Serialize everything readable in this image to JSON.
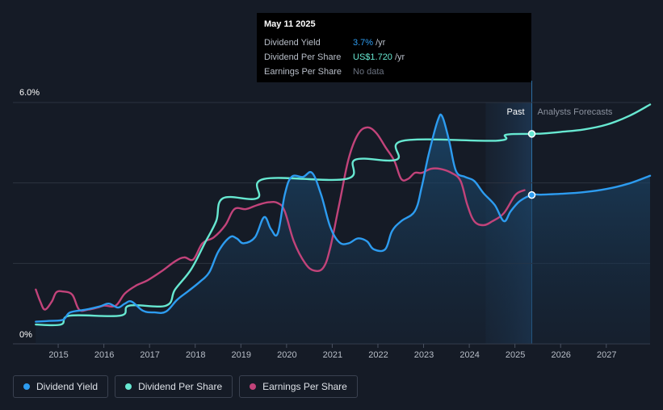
{
  "tooltip": {
    "date": "May 11 2025",
    "rows": [
      {
        "label": "Dividend Yield",
        "value": "3.7%",
        "unit": "/yr"
      },
      {
        "label": "Dividend Per Share",
        "value": "US$1.720",
        "unit": "/yr"
      },
      {
        "label": "Earnings Per Share",
        "value": "No data"
      }
    ]
  },
  "legend": {
    "items": [
      {
        "label": "Dividend Yield",
        "color": "#2d9cf0"
      },
      {
        "label": "Dividend Per Share",
        "color": "#67e8d1"
      },
      {
        "label": "Earnings Per Share",
        "color": "#c2437a"
      }
    ]
  },
  "chart_data": {
    "type": "line",
    "y_top_label": "6.0%",
    "y_bottom_label": "0%",
    "ylim": [
      0,
      6
    ],
    "xlim": [
      2014.0,
      2027.95
    ],
    "x_ticks": [
      2015,
      2016,
      2017,
      2018,
      2019,
      2020,
      2021,
      2022,
      2023,
      2024,
      2025,
      2026,
      2027
    ],
    "x_tick_labels": [
      "2015",
      "2016",
      "2017",
      "2018",
      "2019",
      "2020",
      "2021",
      "2022",
      "2023",
      "2024",
      "2025",
      "2026",
      "2027"
    ],
    "past_label": "Past",
    "forecast_label": "Analysts Forecasts",
    "forecast_start": 2025.36,
    "forecast_shade_start": 2024.35,
    "series": [
      {
        "name": "Dividend Yield",
        "color": "#2d9cf0",
        "values": [
          [
            2014.5,
            0.55
          ],
          [
            2014.8,
            0.57
          ],
          [
            2015.1,
            0.6
          ],
          [
            2015.25,
            0.78
          ],
          [
            2015.6,
            0.85
          ],
          [
            2015.9,
            0.93
          ],
          [
            2016.1,
            1.0
          ],
          [
            2016.3,
            0.9
          ],
          [
            2016.45,
            1.0
          ],
          [
            2016.6,
            1.05
          ],
          [
            2016.85,
            0.82
          ],
          [
            2017.1,
            0.78
          ],
          [
            2017.35,
            0.8
          ],
          [
            2017.6,
            1.1
          ],
          [
            2017.85,
            1.32
          ],
          [
            2018.1,
            1.55
          ],
          [
            2018.3,
            1.78
          ],
          [
            2018.5,
            2.3
          ],
          [
            2018.75,
            2.65
          ],
          [
            2018.9,
            2.62
          ],
          [
            2019.05,
            2.5
          ],
          [
            2019.3,
            2.65
          ],
          [
            2019.5,
            3.15
          ],
          [
            2019.65,
            2.85
          ],
          [
            2019.8,
            2.75
          ],
          [
            2019.95,
            3.7
          ],
          [
            2020.1,
            4.15
          ],
          [
            2020.35,
            4.15
          ],
          [
            2020.55,
            4.25
          ],
          [
            2020.75,
            3.7
          ],
          [
            2020.95,
            2.9
          ],
          [
            2021.15,
            2.52
          ],
          [
            2021.35,
            2.5
          ],
          [
            2021.55,
            2.62
          ],
          [
            2021.75,
            2.55
          ],
          [
            2021.9,
            2.35
          ],
          [
            2022.15,
            2.35
          ],
          [
            2022.3,
            2.8
          ],
          [
            2022.5,
            3.05
          ],
          [
            2022.8,
            3.3
          ],
          [
            2022.95,
            3.9
          ],
          [
            2023.1,
            4.7
          ],
          [
            2023.3,
            5.55
          ],
          [
            2023.4,
            5.65
          ],
          [
            2023.55,
            5.05
          ],
          [
            2023.7,
            4.3
          ],
          [
            2023.9,
            4.15
          ],
          [
            2024.1,
            4.05
          ],
          [
            2024.3,
            3.75
          ],
          [
            2024.55,
            3.45
          ],
          [
            2024.75,
            3.05
          ],
          [
            2024.9,
            3.3
          ],
          [
            2025.1,
            3.55
          ],
          [
            2025.36,
            3.7
          ],
          [
            2025.6,
            3.71
          ],
          [
            2026.0,
            3.73
          ],
          [
            2026.5,
            3.77
          ],
          [
            2027.0,
            3.85
          ],
          [
            2027.5,
            3.99
          ],
          [
            2027.95,
            4.18
          ]
        ]
      },
      {
        "name": "Dividend Per Share",
        "color": "#67e8d1",
        "values": [
          [
            2014.5,
            0.48
          ],
          [
            2015.05,
            0.48
          ],
          [
            2015.25,
            0.7
          ],
          [
            2016.35,
            0.7
          ],
          [
            2016.55,
            0.95
          ],
          [
            2017.35,
            0.95
          ],
          [
            2017.55,
            1.35
          ],
          [
            2017.9,
            1.85
          ],
          [
            2018.2,
            2.5
          ],
          [
            2018.45,
            3.05
          ],
          [
            2018.6,
            3.62
          ],
          [
            2019.35,
            3.62
          ],
          [
            2019.5,
            4.1
          ],
          [
            2021.3,
            4.1
          ],
          [
            2021.5,
            4.58
          ],
          [
            2022.4,
            4.58
          ],
          [
            2022.55,
            5.05
          ],
          [
            2024.6,
            5.05
          ],
          [
            2024.8,
            5.2
          ],
          [
            2025.36,
            5.22
          ],
          [
            2025.6,
            5.23
          ],
          [
            2026.0,
            5.27
          ],
          [
            2026.5,
            5.33
          ],
          [
            2027.0,
            5.45
          ],
          [
            2027.5,
            5.67
          ],
          [
            2027.95,
            5.95
          ]
        ]
      },
      {
        "name": "Earnings Per Share",
        "color": "#c2437a",
        "values": [
          [
            2014.5,
            1.35
          ],
          [
            2014.6,
            1.05
          ],
          [
            2014.7,
            0.85
          ],
          [
            2014.85,
            1.05
          ],
          [
            2014.95,
            1.28
          ],
          [
            2015.1,
            1.3
          ],
          [
            2015.3,
            1.22
          ],
          [
            2015.45,
            0.85
          ],
          [
            2015.65,
            0.85
          ],
          [
            2015.85,
            0.9
          ],
          [
            2016.0,
            0.95
          ],
          [
            2016.25,
            0.95
          ],
          [
            2016.45,
            1.25
          ],
          [
            2016.7,
            1.45
          ],
          [
            2016.95,
            1.58
          ],
          [
            2017.25,
            1.8
          ],
          [
            2017.55,
            2.05
          ],
          [
            2017.75,
            2.15
          ],
          [
            2017.95,
            2.1
          ],
          [
            2018.15,
            2.5
          ],
          [
            2018.4,
            2.65
          ],
          [
            2018.65,
            2.95
          ],
          [
            2018.85,
            3.35
          ],
          [
            2019.1,
            3.35
          ],
          [
            2019.35,
            3.45
          ],
          [
            2019.6,
            3.52
          ],
          [
            2019.8,
            3.5
          ],
          [
            2019.95,
            3.3
          ],
          [
            2020.15,
            2.55
          ],
          [
            2020.4,
            2.0
          ],
          [
            2020.6,
            1.82
          ],
          [
            2020.8,
            1.9
          ],
          [
            2020.95,
            2.4
          ],
          [
            2021.15,
            3.5
          ],
          [
            2021.35,
            4.6
          ],
          [
            2021.55,
            5.2
          ],
          [
            2021.75,
            5.38
          ],
          [
            2021.95,
            5.25
          ],
          [
            2022.15,
            4.9
          ],
          [
            2022.35,
            4.55
          ],
          [
            2022.5,
            4.1
          ],
          [
            2022.65,
            4.1
          ],
          [
            2022.8,
            4.25
          ],
          [
            2022.95,
            4.25
          ],
          [
            2023.15,
            4.35
          ],
          [
            2023.35,
            4.35
          ],
          [
            2023.6,
            4.25
          ],
          [
            2023.8,
            4.05
          ],
          [
            2023.95,
            3.45
          ],
          [
            2024.1,
            3.05
          ],
          [
            2024.3,
            2.95
          ],
          [
            2024.5,
            3.05
          ],
          [
            2024.75,
            3.25
          ],
          [
            2025.0,
            3.7
          ],
          [
            2025.2,
            3.82
          ]
        ]
      }
    ]
  }
}
